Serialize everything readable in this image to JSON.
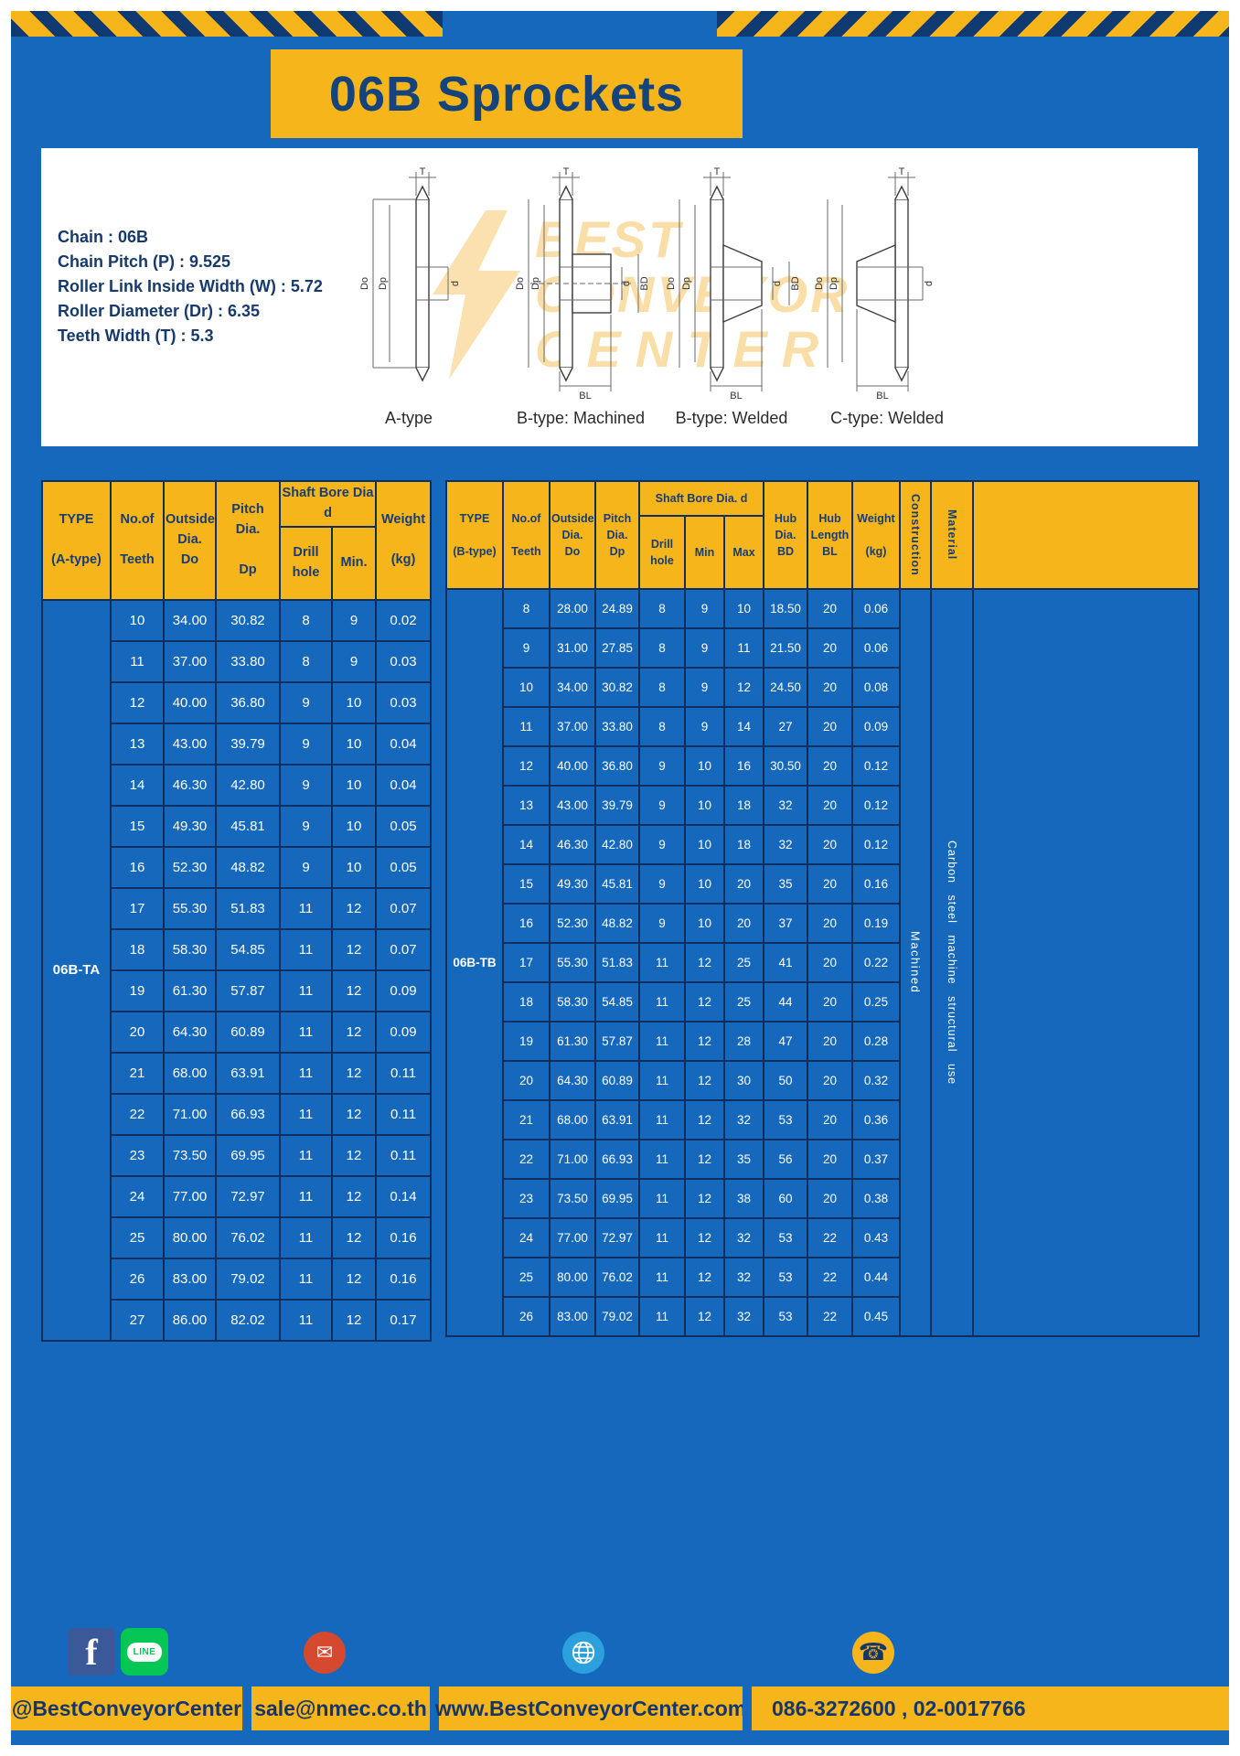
{
  "title": "06B Sprockets",
  "specs": [
    "Chain : 06B",
    "Chain Pitch (P) : 9.525",
    "Roller Link Inside Width (W) : 5.72",
    "Roller Diameter (Dr) : 6.35",
    "Teeth Width (T) : 5.3"
  ],
  "watermark": {
    "line1": "BEST",
    "line2": "CONVEYOR",
    "line3": "CENTER"
  },
  "dim_labels": {
    "t": "T",
    "do": "Do",
    "dp": "Dp",
    "d": "d",
    "bd": "BD",
    "bl": "BL"
  },
  "diagrams": [
    {
      "label": "A-type"
    },
    {
      "label": "B-type: Machined"
    },
    {
      "label": "B-type: Welded"
    },
    {
      "label": "C-type: Welded"
    }
  ],
  "table_a": {
    "headers": {
      "type": "TYPE\n\n(A-type)",
      "teeth": "No.of\n\nTeeth",
      "outside": "Outside\nDia.\nDo",
      "pitch": "Pitch Dia.\n\nDp",
      "bore_group": "Shaft Bore Dia d",
      "drill": "Drill hole",
      "min": "Min.",
      "weight": "Weight\n\n(kg)"
    },
    "type_value": "06B-TA",
    "rows": [
      [
        "10",
        "34.00",
        "30.82",
        "8",
        "9",
        "0.02"
      ],
      [
        "11",
        "37.00",
        "33.80",
        "8",
        "9",
        "0.03"
      ],
      [
        "12",
        "40.00",
        "36.80",
        "9",
        "10",
        "0.03"
      ],
      [
        "13",
        "43.00",
        "39.79",
        "9",
        "10",
        "0.04"
      ],
      [
        "14",
        "46.30",
        "42.80",
        "9",
        "10",
        "0.04"
      ],
      [
        "15",
        "49.30",
        "45.81",
        "9",
        "10",
        "0.05"
      ],
      [
        "16",
        "52.30",
        "48.82",
        "9",
        "10",
        "0.05"
      ],
      [
        "17",
        "55.30",
        "51.83",
        "11",
        "12",
        "0.07"
      ],
      [
        "18",
        "58.30",
        "54.85",
        "11",
        "12",
        "0.07"
      ],
      [
        "19",
        "61.30",
        "57.87",
        "11",
        "12",
        "0.09"
      ],
      [
        "20",
        "64.30",
        "60.89",
        "11",
        "12",
        "0.09"
      ],
      [
        "21",
        "68.00",
        "63.91",
        "11",
        "12",
        "0.11"
      ],
      [
        "22",
        "71.00",
        "66.93",
        "11",
        "12",
        "0.11"
      ],
      [
        "23",
        "73.50",
        "69.95",
        "11",
        "12",
        "0.11"
      ],
      [
        "24",
        "77.00",
        "72.97",
        "11",
        "12",
        "0.14"
      ],
      [
        "25",
        "80.00",
        "76.02",
        "11",
        "12",
        "0.16"
      ],
      [
        "26",
        "83.00",
        "79.02",
        "11",
        "12",
        "0.16"
      ],
      [
        "27",
        "86.00",
        "82.02",
        "11",
        "12",
        "0.17"
      ]
    ]
  },
  "table_b": {
    "headers": {
      "type": "TYPE\n\n(B-type)",
      "teeth": "No.of\n\nTeeth",
      "outside": "Outside\nDia.\nDo",
      "pitch": "Pitch\nDia.\nDp",
      "bore_group": "Shaft Bore Dia.  d",
      "drill": "Drill hole",
      "min": "Min",
      "max": "Max",
      "hub_dia": "Hub\nDia.\nBD",
      "hub_len": "Hub\nLength\nBL",
      "weight": "Weight\n\n(kg)",
      "construction": "Construction",
      "material": "Material"
    },
    "type_value": "06B-TB",
    "construction_value": "Machined",
    "material_value": "Carbon steel machine structural use",
    "rows": [
      [
        "8",
        "28.00",
        "24.89",
        "8",
        "9",
        "10",
        "18.50",
        "20",
        "0.06"
      ],
      [
        "9",
        "31.00",
        "27.85",
        "8",
        "9",
        "11",
        "21.50",
        "20",
        "0.06"
      ],
      [
        "10",
        "34.00",
        "30.82",
        "8",
        "9",
        "12",
        "24.50",
        "20",
        "0.08"
      ],
      [
        "11",
        "37.00",
        "33.80",
        "8",
        "9",
        "14",
        "27",
        "20",
        "0.09"
      ],
      [
        "12",
        "40.00",
        "36.80",
        "9",
        "10",
        "16",
        "30.50",
        "20",
        "0.12"
      ],
      [
        "13",
        "43.00",
        "39.79",
        "9",
        "10",
        "18",
        "32",
        "20",
        "0.12"
      ],
      [
        "14",
        "46.30",
        "42.80",
        "9",
        "10",
        "18",
        "32",
        "20",
        "0.12"
      ],
      [
        "15",
        "49.30",
        "45.81",
        "9",
        "10",
        "20",
        "35",
        "20",
        "0.16"
      ],
      [
        "16",
        "52.30",
        "48.82",
        "9",
        "10",
        "20",
        "37",
        "20",
        "0.19"
      ],
      [
        "17",
        "55.30",
        "51.83",
        "11",
        "12",
        "25",
        "41",
        "20",
        "0.22"
      ],
      [
        "18",
        "58.30",
        "54.85",
        "11",
        "12",
        "25",
        "44",
        "20",
        "0.25"
      ],
      [
        "19",
        "61.30",
        "57.87",
        "11",
        "12",
        "28",
        "47",
        "20",
        "0.28"
      ],
      [
        "20",
        "64.30",
        "60.89",
        "11",
        "12",
        "30",
        "50",
        "20",
        "0.32"
      ],
      [
        "21",
        "68.00",
        "63.91",
        "11",
        "12",
        "32",
        "53",
        "20",
        "0.36"
      ],
      [
        "22",
        "71.00",
        "66.93",
        "11",
        "12",
        "35",
        "56",
        "20",
        "0.37"
      ],
      [
        "23",
        "73.50",
        "69.95",
        "11",
        "12",
        "38",
        "60",
        "20",
        "0.38"
      ],
      [
        "24",
        "77.00",
        "72.97",
        "11",
        "12",
        "32",
        "53",
        "22",
        "0.43"
      ],
      [
        "25",
        "80.00",
        "76.02",
        "11",
        "12",
        "32",
        "53",
        "22",
        "0.44"
      ],
      [
        "26",
        "83.00",
        "79.02",
        "11",
        "12",
        "32",
        "53",
        "22",
        "0.45"
      ]
    ]
  },
  "footer": {
    "handle": "@BestConveyorCenter",
    "email": "sale@nmec.co.th",
    "website": "www.BestConveyorCenter.com",
    "phones": "086-3272600 , 02-0017766"
  },
  "icons": {
    "facebook": "f",
    "line": "LINE",
    "email": "✉",
    "phone": "☎"
  },
  "colors": {
    "page_blue": "#1568bb",
    "accent_yellow": "#f6b51b",
    "navy_text": "#15437c",
    "border_navy": "#0c2f5f",
    "facebook_blue": "#3b5998",
    "line_green": "#06c755",
    "email_red": "#d6492f",
    "globe_blue": "#2ba0dd"
  }
}
